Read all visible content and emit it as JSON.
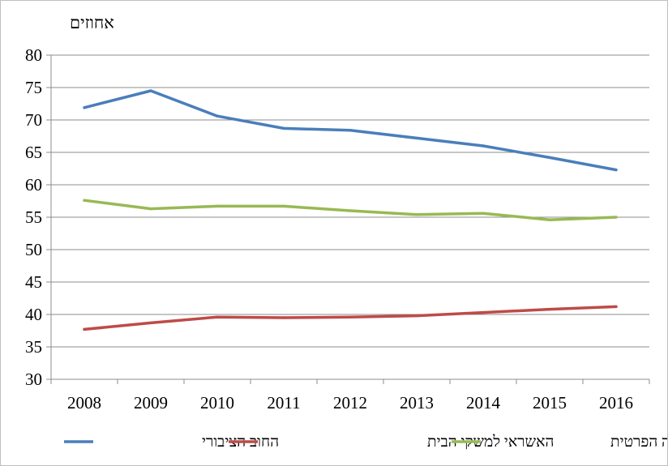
{
  "chart_data": {
    "type": "line",
    "title": "",
    "ylabel": "אחוזים",
    "xlabel": "",
    "ylim": [
      30,
      80
    ],
    "ystep": 5,
    "grid": true,
    "legend_position": "bottom",
    "categories": [
      "2008",
      "2009",
      "2010",
      "2011",
      "2012",
      "2013",
      "2014",
      "2015",
      "2016"
    ],
    "series": [
      {
        "name": "החוב הציבורי",
        "color": "#4a7ebb",
        "values": [
          71.9,
          74.5,
          70.6,
          68.7,
          68.4,
          67.2,
          66.0,
          64.2,
          62.3
        ]
      },
      {
        "name": "האשראי למשקי הבית",
        "color": "#be4b48",
        "values": [
          37.7,
          38.7,
          39.6,
          39.5,
          39.6,
          39.8,
          40.3,
          40.8,
          41.2
        ]
      },
      {
        "name": "הצריכה הפרטית",
        "color": "#98b954",
        "values": [
          57.6,
          56.3,
          56.7,
          56.7,
          56.0,
          55.4,
          55.6,
          54.6,
          55.0
        ]
      }
    ]
  }
}
